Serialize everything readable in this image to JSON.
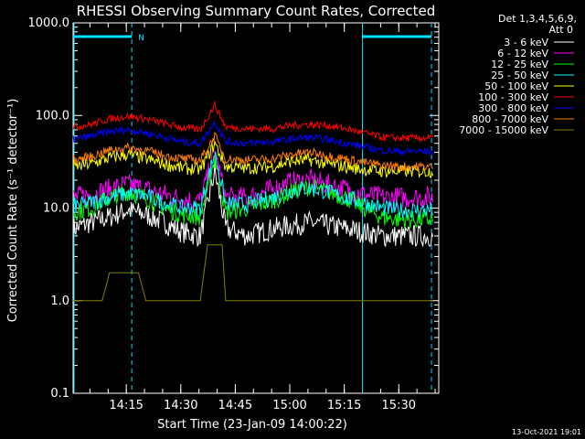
{
  "chart_data": {
    "type": "line",
    "title": "RHESSI Observing Summary Count Rates, Corrected",
    "xlabel": "Start Time (23-Jan-09 14:00:22)",
    "ylabel": "Corrected Count Rate (s⁻¹ detector⁻¹)",
    "y_scale": "log",
    "ylim": [
      0.1,
      1000
    ],
    "xlim": [
      "14:00:22",
      "15:41:00"
    ],
    "x_ticks": [
      "14:15",
      "14:30",
      "14:45",
      "15:00",
      "15:15",
      "15:30"
    ],
    "y_ticks": [
      "0.1",
      "1.0",
      "10.0",
      "100.0",
      "1000.0"
    ],
    "legend_header": [
      "Det 1,3,4,5,6,9,",
      "Att 0"
    ],
    "legend_position": "top-right outside",
    "footer": "13-Oct-2021 19:01",
    "night_marker": "N",
    "night_intervals": [
      [
        "14:00:22",
        "14:16:30"
      ],
      [
        "15:20:00",
        "15:39:00"
      ]
    ],
    "series": [
      {
        "name": "3 - 6 keV",
        "color": "#ffffff",
        "baseline_profile": [
          [
            0,
            6
          ],
          [
            5,
            7
          ],
          [
            10,
            8
          ],
          [
            15,
            9.5
          ],
          [
            20,
            8.5
          ],
          [
            25,
            7
          ],
          [
            30,
            5.5
          ],
          [
            35,
            5
          ],
          [
            39,
            25
          ],
          [
            42,
            6
          ],
          [
            48,
            5
          ],
          [
            55,
            6
          ],
          [
            60,
            6.5
          ],
          [
            65,
            7
          ],
          [
            70,
            6.5
          ],
          [
            75,
            6
          ],
          [
            80,
            5.5
          ],
          [
            85,
            5
          ],
          [
            90,
            5
          ],
          [
            99,
            5
          ]
        ]
      },
      {
        "name": "6 - 12 keV",
        "color": "#ff00ff",
        "baseline_profile": [
          [
            0,
            13
          ],
          [
            5,
            14
          ],
          [
            10,
            16
          ],
          [
            15,
            18
          ],
          [
            20,
            16
          ],
          [
            25,
            14
          ],
          [
            30,
            12.5
          ],
          [
            35,
            12
          ],
          [
            39,
            40
          ],
          [
            42,
            13
          ],
          [
            48,
            13
          ],
          [
            55,
            16
          ],
          [
            60,
            19
          ],
          [
            65,
            20
          ],
          [
            70,
            18
          ],
          [
            75,
            16
          ],
          [
            80,
            14
          ],
          [
            85,
            13
          ],
          [
            90,
            13
          ],
          [
            99,
            13
          ]
        ]
      },
      {
        "name": "12 - 25 keV",
        "color": "#00ff00",
        "baseline_profile": [
          [
            0,
            9
          ],
          [
            5,
            10
          ],
          [
            10,
            13
          ],
          [
            15,
            15
          ],
          [
            20,
            13
          ],
          [
            25,
            10
          ],
          [
            30,
            8.5
          ],
          [
            35,
            8
          ],
          [
            39,
            35
          ],
          [
            42,
            9
          ],
          [
            48,
            10
          ],
          [
            55,
            12
          ],
          [
            60,
            15
          ],
          [
            65,
            17
          ],
          [
            70,
            15
          ],
          [
            75,
            13
          ],
          [
            80,
            10
          ],
          [
            85,
            8
          ],
          [
            90,
            7.5
          ],
          [
            99,
            7.5
          ]
        ]
      },
      {
        "name": "25 - 50 keV",
        "color": "#00ffff",
        "baseline_profile": [
          [
            0,
            10.5
          ],
          [
            5,
            11.5
          ],
          [
            10,
            13
          ],
          [
            15,
            14.5
          ],
          [
            20,
            13.5
          ],
          [
            25,
            11.5
          ],
          [
            30,
            10
          ],
          [
            35,
            10
          ],
          [
            39,
            40
          ],
          [
            42,
            11
          ],
          [
            48,
            11
          ],
          [
            55,
            13
          ],
          [
            60,
            15.5
          ],
          [
            65,
            16.5
          ],
          [
            70,
            15
          ],
          [
            75,
            13
          ],
          [
            80,
            11.5
          ],
          [
            85,
            10
          ],
          [
            90,
            9.5
          ],
          [
            99,
            9.5
          ]
        ]
      },
      {
        "name": "50 - 100 keV",
        "color": "#ffff00",
        "baseline_profile": [
          [
            0,
            28
          ],
          [
            5,
            30
          ],
          [
            10,
            35
          ],
          [
            15,
            38
          ],
          [
            20,
            34
          ],
          [
            25,
            30
          ],
          [
            30,
            27
          ],
          [
            35,
            26
          ],
          [
            39,
            50
          ],
          [
            42,
            28
          ],
          [
            48,
            27
          ],
          [
            55,
            28
          ],
          [
            60,
            32
          ],
          [
            65,
            33
          ],
          [
            70,
            30
          ],
          [
            75,
            28
          ],
          [
            80,
            26
          ],
          [
            85,
            25
          ],
          [
            90,
            25
          ],
          [
            99,
            25
          ]
        ]
      },
      {
        "name": "100 - 300 keV",
        "color": "#ff0000",
        "baseline_profile": [
          [
            0,
            75
          ],
          [
            5,
            80
          ],
          [
            10,
            92
          ],
          [
            15,
            98
          ],
          [
            20,
            92
          ],
          [
            25,
            82
          ],
          [
            30,
            74
          ],
          [
            35,
            70
          ],
          [
            39,
            130
          ],
          [
            42,
            75
          ],
          [
            48,
            72
          ],
          [
            55,
            72
          ],
          [
            60,
            78
          ],
          [
            65,
            80
          ],
          [
            70,
            78
          ],
          [
            75,
            72
          ],
          [
            80,
            65
          ],
          [
            85,
            58
          ],
          [
            90,
            57
          ],
          [
            99,
            57
          ]
        ]
      },
      {
        "name": "300 - 800 keV",
        "color": "#0000ff",
        "baseline_profile": [
          [
            0,
            55
          ],
          [
            5,
            60
          ],
          [
            10,
            67
          ],
          [
            15,
            70
          ],
          [
            20,
            65
          ],
          [
            25,
            58
          ],
          [
            30,
            52
          ],
          [
            35,
            50
          ],
          [
            39,
            85
          ],
          [
            42,
            52
          ],
          [
            48,
            50
          ],
          [
            55,
            52
          ],
          [
            60,
            56
          ],
          [
            65,
            58
          ],
          [
            70,
            55
          ],
          [
            75,
            50
          ],
          [
            80,
            46
          ],
          [
            85,
            42
          ],
          [
            90,
            41
          ],
          [
            99,
            41
          ]
        ]
      },
      {
        "name": "800 - 7000 keV",
        "color": "#ff8000",
        "baseline_profile": [
          [
            0,
            33
          ],
          [
            5,
            36
          ],
          [
            10,
            42
          ],
          [
            15,
            45
          ],
          [
            20,
            42
          ],
          [
            25,
            37
          ],
          [
            30,
            34
          ],
          [
            35,
            33
          ],
          [
            39,
            60
          ],
          [
            42,
            34
          ],
          [
            48,
            33
          ],
          [
            55,
            34
          ],
          [
            60,
            38
          ],
          [
            65,
            40
          ],
          [
            70,
            37
          ],
          [
            75,
            34
          ],
          [
            80,
            31
          ],
          [
            85,
            29
          ],
          [
            90,
            28
          ],
          [
            99,
            28
          ]
        ]
      },
      {
        "name": "7000 - 15000 keV",
        "color": "#808000",
        "baseline_profile": [
          [
            0,
            1
          ],
          [
            8,
            1
          ],
          [
            10,
            2
          ],
          [
            18,
            2
          ],
          [
            20,
            1
          ],
          [
            35,
            1
          ],
          [
            37,
            4
          ],
          [
            41,
            4
          ],
          [
            42,
            1
          ],
          [
            44,
            1
          ],
          [
            50,
            1
          ],
          [
            55,
            1
          ],
          [
            65,
            1
          ],
          [
            75,
            1
          ],
          [
            80,
            1
          ],
          [
            85,
            1
          ],
          [
            90,
            1
          ],
          [
            99,
            1
          ]
        ]
      }
    ]
  }
}
